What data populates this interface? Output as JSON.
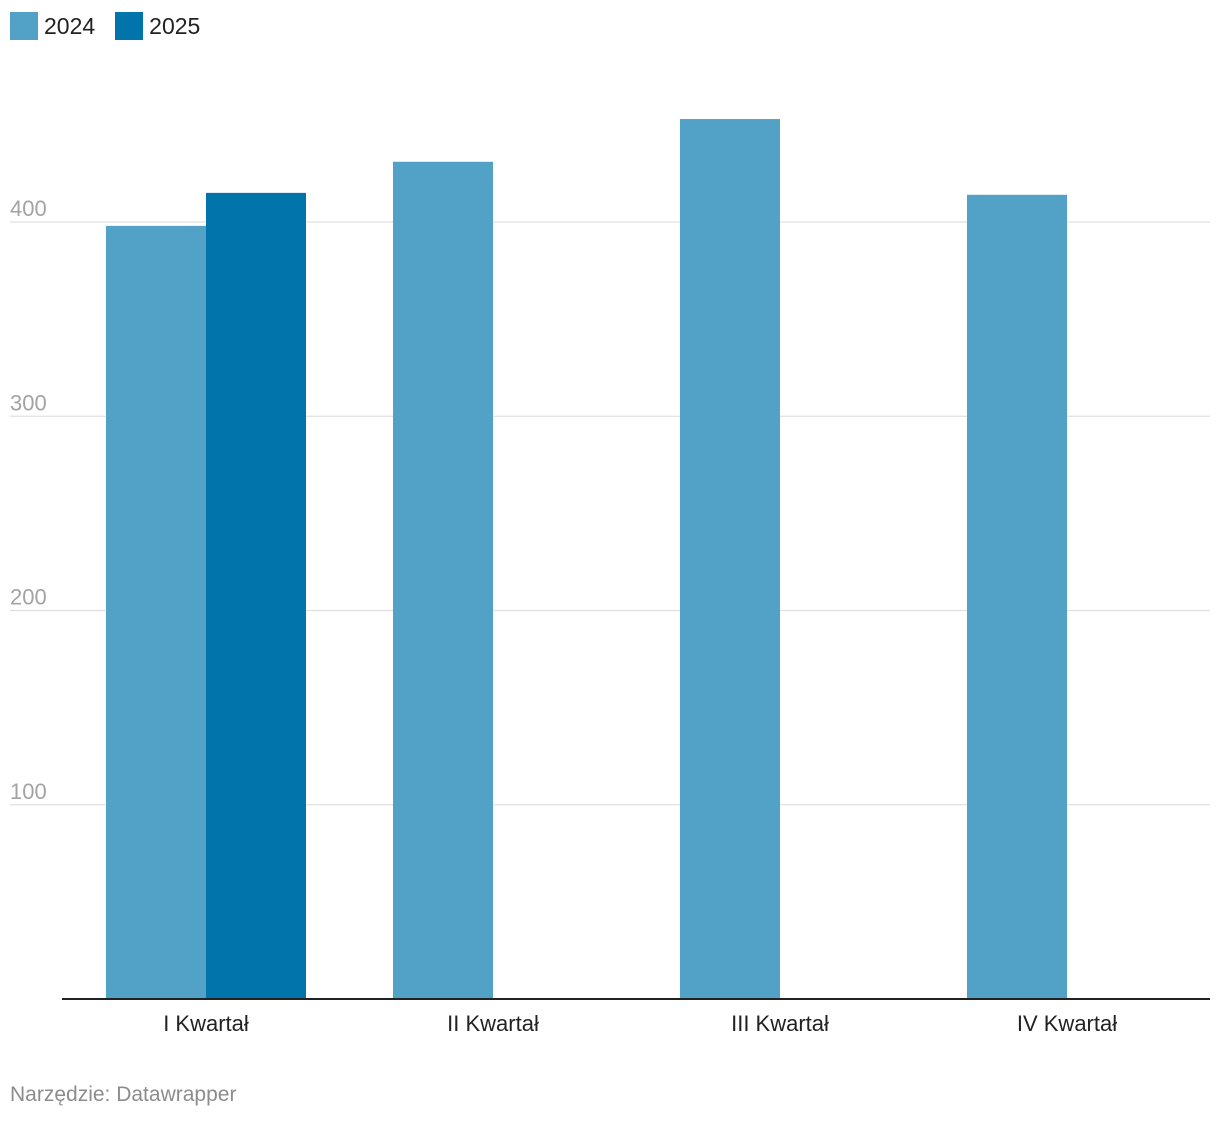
{
  "legend": [
    {
      "label": "2024",
      "color": "#52a2c8"
    },
    {
      "label": "2025",
      "color": "#0274ac"
    }
  ],
  "footer": {
    "source": "Narzędzie: Datawrapper"
  },
  "chart_data": {
    "type": "bar",
    "categories": [
      "I Kwartał",
      "II Kwartał",
      "III Kwartał",
      "IV Kwartał"
    ],
    "series": [
      {
        "name": "2024",
        "color": "#52a2c8",
        "values": [
          398,
          431,
          453,
          414
        ]
      },
      {
        "name": "2025",
        "color": "#0274ac",
        "values": [
          415,
          null,
          null,
          null
        ]
      }
    ],
    "yticks": [
      100,
      200,
      300,
      400
    ],
    "ylim": [
      0,
      500
    ],
    "grid": true,
    "legend_position": "top-left",
    "xlabel": "",
    "ylabel": ""
  }
}
